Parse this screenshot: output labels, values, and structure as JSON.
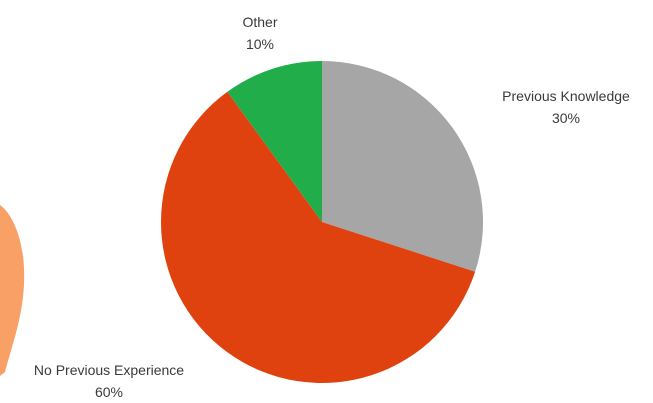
{
  "chart_data": {
    "type": "pie",
    "title": "",
    "start_angle_deg": 0,
    "direction": "clockwise",
    "slices": [
      {
        "name": "Previous Knowledge",
        "value": 30,
        "percent_label": "30%",
        "color": "#a6a6a6",
        "label_pos": "right"
      },
      {
        "name": "No Previous Experience",
        "value": 60,
        "percent_label": "60%",
        "color": "#e0420f",
        "label_pos": "bottom-left"
      },
      {
        "name": "Other",
        "value": 10,
        "percent_label": "10%",
        "color": "#22ad4b",
        "label_pos": "top"
      }
    ]
  },
  "decoration": {
    "accent_color": "#f9a066"
  }
}
